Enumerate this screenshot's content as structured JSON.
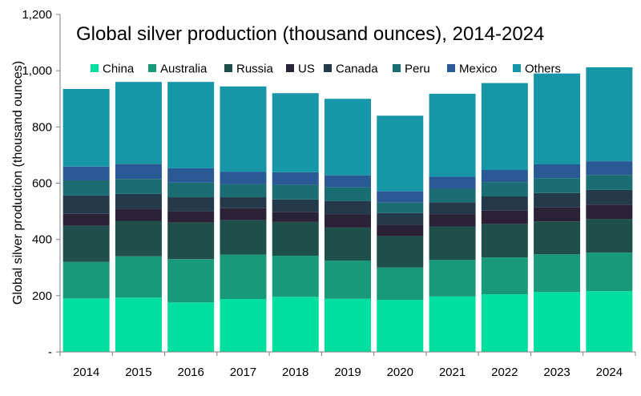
{
  "colors": {
    "China": "#00df9f",
    "Australia": "#18997a",
    "Russia": "#1f4f4a",
    "US": "#2b2238",
    "Canada": "#243a4a",
    "Peru": "#1a6d73",
    "Mexico": "#2a5a94",
    "Others": "#1796a8",
    "axis": "#7f7f7f"
  },
  "chart_data": {
    "type": "bar",
    "stacked": true,
    "title": "Global silver production (thousand ounces), 2014-2024",
    "xlabel": "",
    "ylabel": "Global silver production (thousand ounces)",
    "ylim": [
      0,
      1200
    ],
    "yticks": [
      0,
      200,
      400,
      600,
      800,
      1000,
      1200
    ],
    "ytick_labels": [
      "-",
      "200",
      "400",
      "600",
      "800",
      "1,000",
      "1,200"
    ],
    "grid": false,
    "legend_position": "top",
    "categories": [
      "2014",
      "2015",
      "2016",
      "2017",
      "2018",
      "2019",
      "2020",
      "2021",
      "2022",
      "2023",
      "2024"
    ],
    "series": [
      {
        "name": "China",
        "values": [
          190,
          193,
          176,
          188,
          196,
          189,
          185,
          197,
          205,
          213,
          216
        ]
      },
      {
        "name": "Australia",
        "values": [
          130,
          147,
          154,
          158,
          146,
          136,
          115,
          130,
          131,
          134,
          137
        ]
      },
      {
        "name": "Russia",
        "values": [
          128,
          126,
          130,
          122,
          120,
          117,
          112,
          119,
          119,
          117,
          120
        ]
      },
      {
        "name": "US",
        "values": [
          43,
          43,
          39,
          43,
          36,
          47,
          40,
          43,
          47,
          51,
          51
        ]
      },
      {
        "name": "Canada",
        "values": [
          65,
          53,
          51,
          39,
          44,
          47,
          42,
          43,
          51,
          50,
          52
        ]
      },
      {
        "name": "Peru",
        "values": [
          54,
          53,
          52,
          46,
          52,
          49,
          37,
          48,
          51,
          53,
          53
        ]
      },
      {
        "name": "Mexico",
        "values": [
          49,
          53,
          51,
          45,
          45,
          43,
          40,
          43,
          43,
          49,
          49
        ]
      },
      {
        "name": "Others",
        "values": [
          276,
          292,
          307,
          303,
          281,
          272,
          269,
          295,
          309,
          323,
          334
        ]
      }
    ]
  }
}
